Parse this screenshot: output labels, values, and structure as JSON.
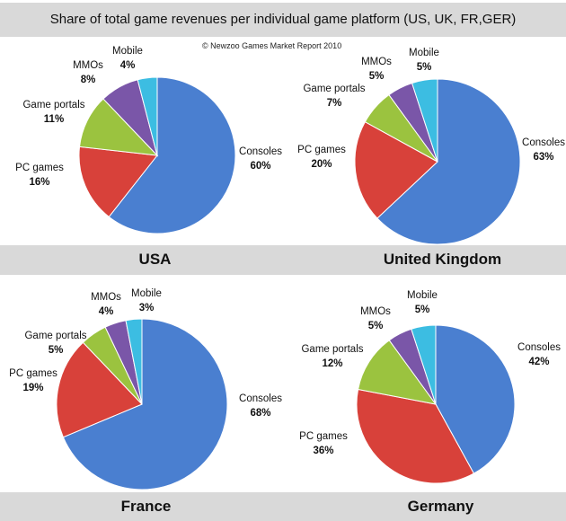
{
  "chart_data": {
    "type": "pie",
    "title": "Share of total game revenues per individual game platform  (US, UK, FR,GER)",
    "annotation": "© Newzoo Games Market Report 2010",
    "categories": [
      "Consoles",
      "PC games",
      "Game portals",
      "MMOs",
      "Mobile"
    ],
    "colors": [
      "#4a7fd0",
      "#d8413a",
      "#9bc33f",
      "#7a56a8",
      "#3cbde2"
    ],
    "charts": [
      {
        "title": "USA",
        "values": [
          60,
          16,
          11,
          8,
          4
        ]
      },
      {
        "title": "United Kingdom",
        "values": [
          63,
          20,
          7,
          5,
          5
        ]
      },
      {
        "title": "France",
        "values": [
          68,
          19,
          5,
          4,
          3
        ]
      },
      {
        "title": "Germany",
        "values": [
          42,
          36,
          12,
          5,
          5
        ]
      }
    ]
  }
}
